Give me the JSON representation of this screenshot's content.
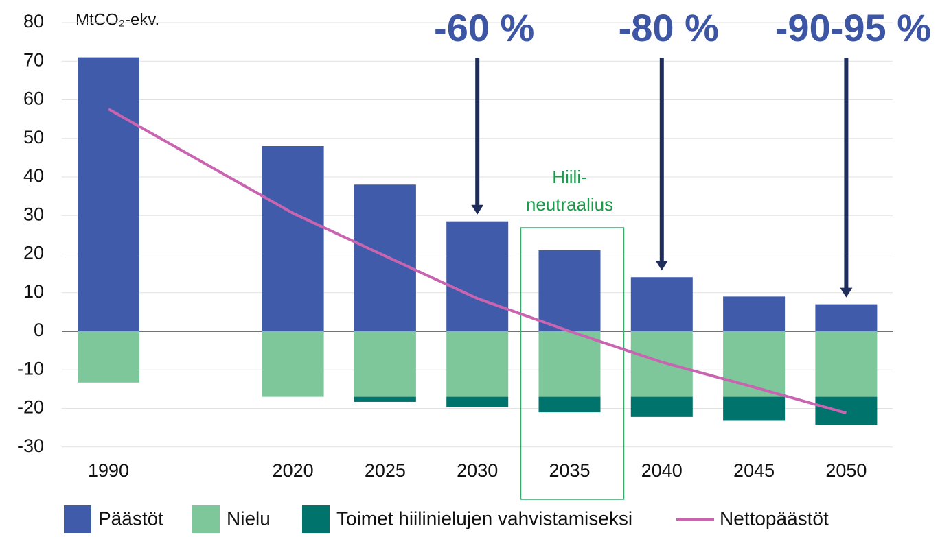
{
  "chart_data": {
    "type": "bar",
    "y_axis_label": "MtCO₂-ekv.",
    "categories": [
      "1990",
      "2020",
      "2025",
      "2030",
      "2035",
      "2040",
      "2045",
      "2050"
    ],
    "series": [
      {
        "name": "Päästöt",
        "color": "#3f5ba9",
        "type": "bar",
        "values": [
          71,
          48,
          38,
          28.5,
          21,
          14,
          9,
          7
        ]
      },
      {
        "name": "Nielu",
        "color": "#7dc79a",
        "type": "bar",
        "values": [
          -13.3,
          -17,
          -17,
          -17,
          -17,
          -17,
          -17,
          -17
        ]
      },
      {
        "name": "Toimet hiilinielujen vahvistamiseksi",
        "color": "#00746c",
        "type": "bar",
        "values": [
          null,
          null,
          -1.3,
          -2.7,
          -4,
          -5.2,
          -6.2,
          -7.2
        ]
      },
      {
        "name": "Nettopäästöt",
        "color": "#c965b0",
        "type": "line",
        "values": [
          57.6,
          30.6,
          19.5,
          8.5,
          0,
          -8,
          -14.5,
          -21.2
        ]
      }
    ],
    "ylim": [
      -30,
      80
    ],
    "yticks": [
      -30,
      -20,
      -10,
      0,
      10,
      20,
      30,
      40,
      50,
      60,
      70,
      80
    ],
    "grid": true,
    "annotations": [
      "-60 %",
      "-80 %",
      "-90-95 %"
    ],
    "highlight_label": [
      "Hiili-",
      "neutraalius"
    ]
  }
}
